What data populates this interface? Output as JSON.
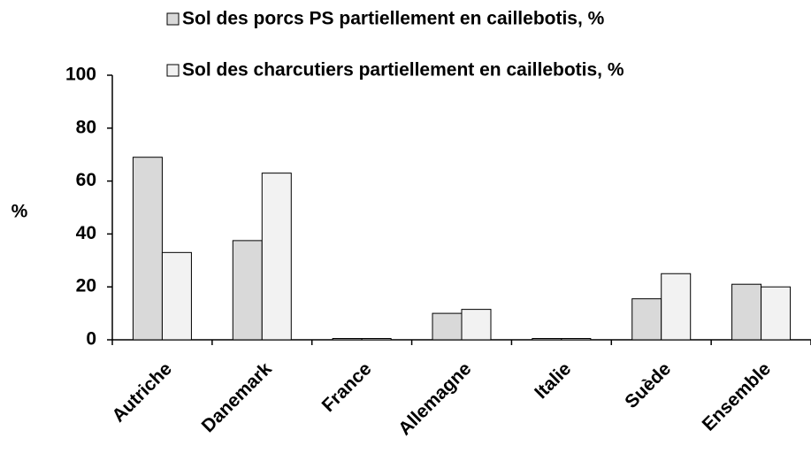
{
  "chart_data": {
    "type": "bar",
    "categories": [
      "Autriche",
      "Danemark",
      "France",
      "Allemagne",
      "Italie",
      "Suède",
      "Ensemble"
    ],
    "series": [
      {
        "name": "Sol des porcs PS partiellement en caillebotis, %",
        "color": "#d9d9d9",
        "values": [
          69,
          37.5,
          0.5,
          10,
          0.5,
          15.5,
          21
        ]
      },
      {
        "name": "Sol des charcutiers partiellement en caillebotis, %",
        "color": "#f2f2f2",
        "values": [
          33,
          63,
          0.5,
          11.5,
          0.5,
          25,
          20
        ]
      }
    ],
    "y_label": "%",
    "ylim": [
      0,
      100
    ],
    "yticks": [
      0,
      20,
      40,
      60,
      80,
      100
    ],
    "legend": "top",
    "grid": false
  }
}
